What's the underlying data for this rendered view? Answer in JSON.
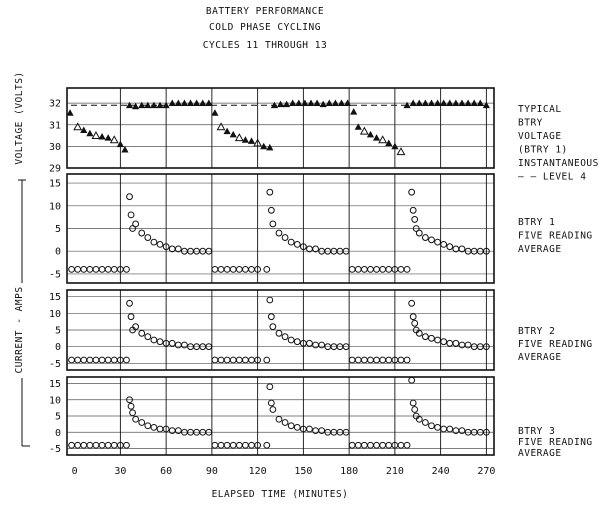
{
  "title_lines": [
    "BATTERY PERFORMANCE",
    "COLD PHASE CYCLING",
    "CYCLES 11 THROUGH 13"
  ],
  "xlabel": "ELAPSED TIME (MINUTES)",
  "voltage_axis_label": "VOLTAGE (VOLTS)",
  "current_axis_label": "CURRENT - AMPS",
  "x_ticks": [
    "0",
    "30",
    "60",
    "90",
    "120",
    "150",
    "180",
    "210",
    "240",
    "270"
  ],
  "colors": {
    "ink": "#111111",
    "background": "#ffffff"
  },
  "chart_data": [
    {
      "type": "scatter",
      "panel": "voltage",
      "xlim": [
        -5,
        275
      ],
      "ylim": [
        29,
        32.7
      ],
      "yticks": [
        "32",
        "31",
        "30",
        "29"
      ],
      "right_labels": [
        "TYPICAL",
        "BTRY",
        "VOLTAGE",
        "(BTRY 1)",
        "INSTANTANEOUS",
        "— — LEVEL 4"
      ],
      "series": [
        {
          "name": "TYPICAL BTRY VOLTAGE (BTRY 1)",
          "marker": "triangle",
          "x": [
            -3,
            2,
            6,
            10,
            14,
            18,
            22,
            26,
            30,
            33,
            36,
            40,
            44,
            48,
            52,
            56,
            60,
            64,
            68,
            72,
            76,
            80,
            84,
            88,
            92,
            96,
            100,
            104,
            108,
            112,
            116,
            120,
            124,
            128,
            131,
            135,
            139,
            143,
            147,
            151,
            155,
            159,
            163,
            167,
            171,
            175,
            179,
            183,
            186,
            190,
            194,
            198,
            202,
            206,
            210,
            214,
            218,
            222,
            226,
            230,
            234,
            238,
            242,
            246,
            250,
            254,
            258,
            262,
            266,
            270
          ],
          "y": [
            31.55,
            30.9,
            30.75,
            30.6,
            30.5,
            30.45,
            30.4,
            30.3,
            30.1,
            29.85,
            31.9,
            31.85,
            31.9,
            31.9,
            31.9,
            31.9,
            31.9,
            32.0,
            32.0,
            32.0,
            32.0,
            32.0,
            32.0,
            32.0,
            31.55,
            30.9,
            30.7,
            30.55,
            30.4,
            30.3,
            30.25,
            30.15,
            30.0,
            29.95,
            31.9,
            31.95,
            31.95,
            32.0,
            32.0,
            32.0,
            32.0,
            32.0,
            31.95,
            32.0,
            32.0,
            32.0,
            32.0,
            31.6,
            30.9,
            30.7,
            30.55,
            30.4,
            30.3,
            30.15,
            30.0,
            29.75,
            31.9,
            32.0,
            32.0,
            32.0,
            32.0,
            32.0,
            32.0,
            32.0,
            32.0,
            32.0,
            32.0,
            32.0,
            32.0,
            31.9
          ]
        }
      ]
    },
    {
      "type": "scatter",
      "panel": "btry1",
      "xlim": [
        -5,
        275
      ],
      "ylim": [
        -7,
        17
      ],
      "yticks": [
        "15",
        "10",
        "5",
        "0",
        "-5"
      ],
      "right_labels": [
        "BTRY 1",
        "FIVE READING",
        "AVERAGE"
      ],
      "series": [
        {
          "name": "BTRY 1 FIVE READING AVERAGE",
          "marker": "circle",
          "x": [
            -2,
            2,
            6,
            10,
            14,
            18,
            22,
            26,
            30,
            34,
            36,
            37,
            38,
            40,
            44,
            48,
            52,
            56,
            60,
            64,
            68,
            72,
            76,
            80,
            84,
            88,
            92,
            96,
            100,
            104,
            108,
            112,
            116,
            120,
            126,
            128,
            129,
            130,
            134,
            138,
            142,
            146,
            150,
            154,
            158,
            162,
            166,
            170,
            174,
            178,
            182,
            186,
            190,
            194,
            198,
            202,
            206,
            210,
            214,
            218,
            221,
            222,
            223,
            224,
            226,
            230,
            234,
            238,
            242,
            246,
            250,
            254,
            258,
            262,
            266,
            270
          ],
          "y": [
            -4,
            -4,
            -4,
            -4,
            -4,
            -4,
            -4,
            -4,
            -4,
            -4,
            12,
            8,
            5,
            6,
            4,
            3,
            2,
            1.5,
            1,
            0.5,
            0.5,
            0,
            0,
            0,
            0,
            0,
            -4,
            -4,
            -4,
            -4,
            -4,
            -4,
            -4,
            -4,
            -4,
            13,
            9,
            6,
            4,
            3,
            2,
            1.5,
            1,
            0.5,
            0.5,
            0,
            0,
            0,
            0,
            0,
            -4,
            -4,
            -4,
            -4,
            -4,
            -4,
            -4,
            -4,
            -4,
            -4,
            13,
            9,
            7,
            5,
            4,
            3,
            2.5,
            2,
            1.5,
            1,
            0.5,
            0.5,
            0,
            0,
            0,
            0
          ]
        }
      ]
    },
    {
      "type": "scatter",
      "panel": "btry2",
      "xlim": [
        -5,
        275
      ],
      "ylim": [
        -7,
        17
      ],
      "yticks": [
        "15",
        "10",
        "5",
        "0",
        "-5"
      ],
      "right_labels": [
        "BTRY 2",
        "FIVE READING",
        "AVERAGE"
      ],
      "series": [
        {
          "name": "BTRY 2 FIVE READING AVERAGE",
          "marker": "circle",
          "x": [
            -2,
            2,
            6,
            10,
            14,
            18,
            22,
            26,
            30,
            34,
            36,
            37,
            38,
            40,
            44,
            48,
            52,
            56,
            60,
            64,
            68,
            72,
            76,
            80,
            84,
            88,
            92,
            96,
            100,
            104,
            108,
            112,
            116,
            120,
            126,
            128,
            129,
            130,
            134,
            138,
            142,
            146,
            150,
            154,
            158,
            162,
            166,
            170,
            174,
            178,
            182,
            186,
            190,
            194,
            198,
            202,
            206,
            210,
            214,
            218,
            221,
            222,
            223,
            224,
            226,
            230,
            234,
            238,
            242,
            246,
            250,
            254,
            258,
            262,
            266,
            270
          ],
          "y": [
            -4,
            -4,
            -4,
            -4,
            -4,
            -4,
            -4,
            -4,
            -4,
            -4,
            13,
            9,
            5,
            6,
            4,
            3,
            2,
            1.5,
            1,
            1,
            0.5,
            0.5,
            0,
            0,
            0,
            0,
            -4,
            -4,
            -4,
            -4,
            -4,
            -4,
            -4,
            -4,
            -4,
            14,
            9,
            6,
            4,
            3,
            2,
            1.5,
            1,
            1,
            0.5,
            0.5,
            0,
            0,
            0,
            0,
            -4,
            -4,
            -4,
            -4,
            -4,
            -4,
            -4,
            -4,
            -4,
            -4,
            13,
            9,
            7,
            5,
            4,
            3,
            2.5,
            2,
            1.5,
            1,
            1,
            0.5,
            0.5,
            0,
            0,
            0
          ]
        }
      ]
    },
    {
      "type": "scatter",
      "panel": "btry3",
      "xlim": [
        -5,
        275
      ],
      "ylim": [
        -7,
        17
      ],
      "yticks": [
        "15",
        "10",
        "5",
        "0",
        "-5"
      ],
      "right_labels": [
        "BTRY 3",
        "FIVE READING",
        "AVERAGE"
      ],
      "series": [
        {
          "name": "BTRY 3 FIVE READING AVERAGE",
          "marker": "circle",
          "x": [
            -2,
            2,
            6,
            10,
            14,
            18,
            22,
            26,
            30,
            34,
            36,
            37,
            38,
            40,
            44,
            48,
            52,
            56,
            60,
            64,
            68,
            72,
            76,
            80,
            84,
            88,
            92,
            96,
            100,
            104,
            108,
            112,
            116,
            120,
            126,
            128,
            129,
            130,
            134,
            138,
            142,
            146,
            150,
            154,
            158,
            162,
            166,
            170,
            174,
            178,
            182,
            186,
            190,
            194,
            198,
            202,
            206,
            210,
            214,
            218,
            221,
            222,
            223,
            224,
            226,
            230,
            234,
            238,
            242,
            246,
            250,
            254,
            258,
            262,
            266,
            270
          ],
          "y": [
            -4,
            -4,
            -4,
            -4,
            -4,
            -4,
            -4,
            -4,
            -4,
            -4,
            10,
            8,
            6,
            4,
            3,
            2,
            1.5,
            1,
            1,
            0.5,
            0.5,
            0,
            0,
            0,
            0,
            0,
            -4,
            -4,
            -4,
            -4,
            -4,
            -4,
            -4,
            -4,
            -4,
            14,
            9,
            7,
            4,
            3,
            2,
            1.5,
            1,
            1,
            0.5,
            0.5,
            0,
            0,
            0,
            0,
            -4,
            -4,
            -4,
            -4,
            -4,
            -4,
            -4,
            -4,
            -4,
            -4,
            16,
            9,
            7,
            5,
            4,
            3,
            2,
            1.5,
            1,
            1,
            0.5,
            0.5,
            0,
            0,
            0,
            0
          ]
        }
      ]
    }
  ]
}
